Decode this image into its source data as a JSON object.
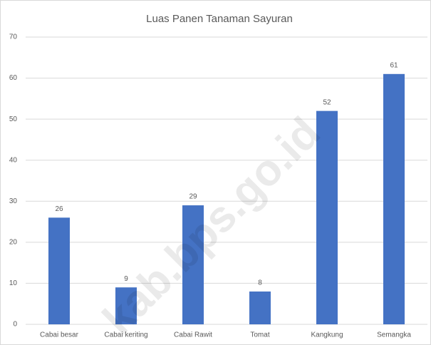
{
  "chart_data": {
    "type": "bar",
    "title": "Luas Panen Tanaman Sayuran",
    "categories": [
      "Cabai besar",
      "Cabai keriting",
      "Cabai Rawit",
      "Tomat",
      "Kangkung",
      "Semangka"
    ],
    "values": [
      26,
      9,
      29,
      8,
      52,
      61
    ],
    "color": "#4472c4",
    "ylim": [
      0,
      70
    ],
    "yticks": [
      0,
      10,
      20,
      30,
      40,
      50,
      60,
      70
    ],
    "grid": true,
    "watermark": "kab.bps.go.id"
  }
}
